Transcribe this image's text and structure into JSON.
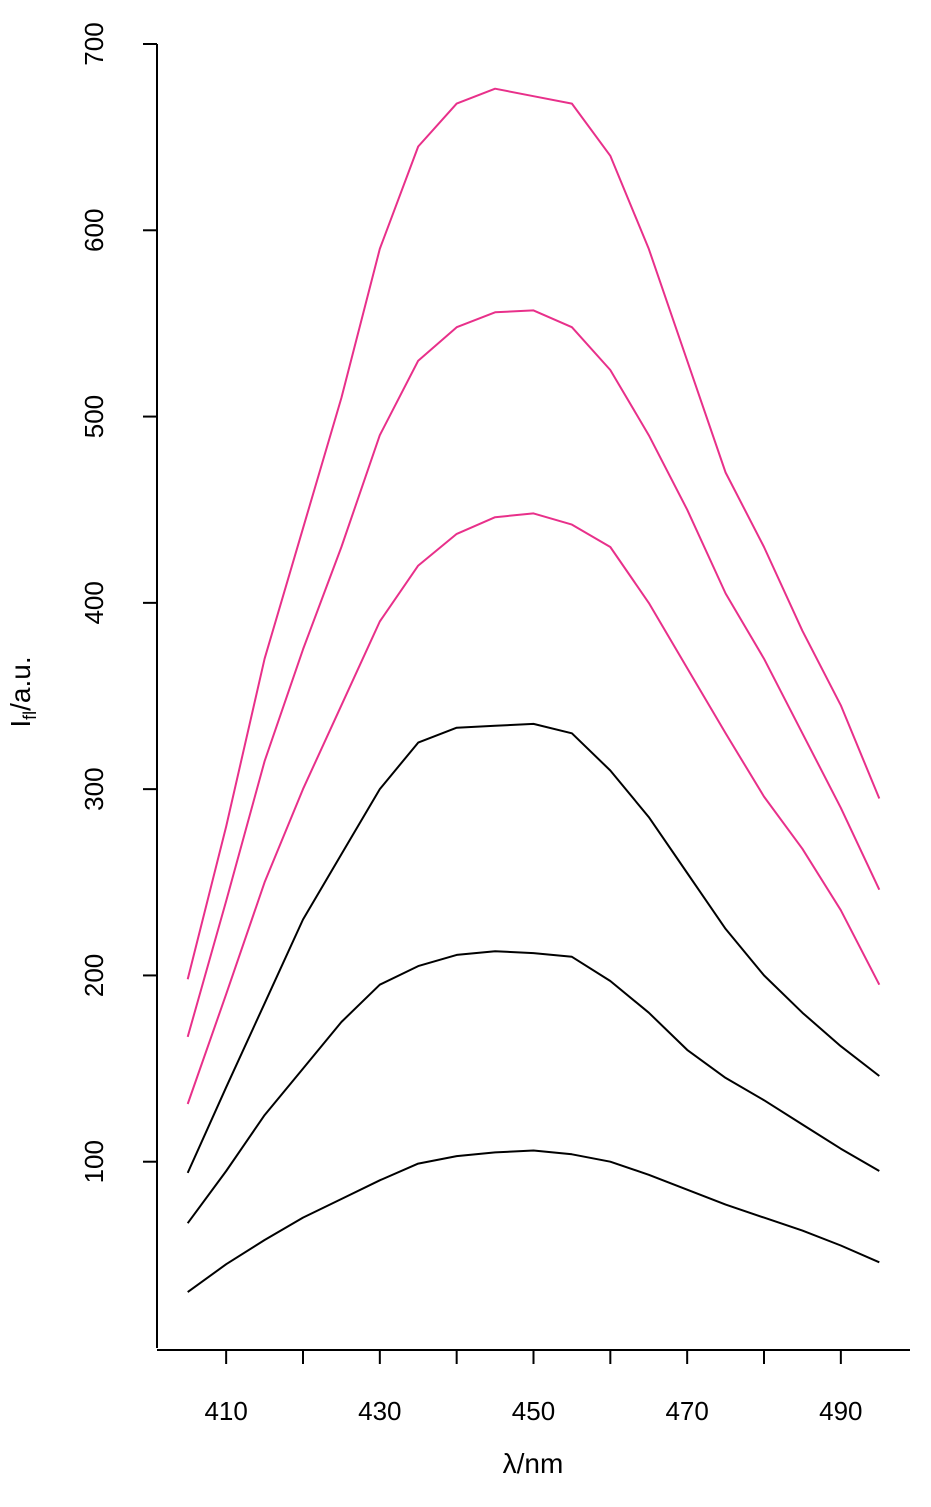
{
  "chart_data": {
    "type": "line",
    "title": "",
    "xlabel_symbol": "λ",
    "xlabel_unit": "/nm",
    "ylabel_main": "I",
    "ylabel_sub": "fl",
    "ylabel_unit": "/a.u.",
    "xlim": [
      401,
      499
    ],
    "ylim": [
      0,
      700
    ],
    "x_ticks": [
      410,
      420,
      430,
      440,
      450,
      460,
      470,
      480,
      490
    ],
    "x_tick_labels": [
      "410",
      "",
      "430",
      "",
      "450",
      "",
      "470",
      "",
      "490"
    ],
    "y_ticks": [
      100,
      200,
      300,
      400,
      500,
      600,
      700
    ],
    "y_tick_labels": [
      "100",
      "200",
      "300",
      "400",
      "500",
      "600",
      "700"
    ],
    "grid": false,
    "x": [
      405,
      410,
      415,
      420,
      425,
      430,
      435,
      440,
      445,
      450,
      455,
      460,
      465,
      470,
      475,
      480,
      485,
      490,
      495
    ],
    "series": [
      {
        "color": "#E8308A",
        "values": [
          198,
          280,
          370,
          440,
          510,
          590,
          645,
          668,
          676,
          672,
          668,
          640,
          590,
          530,
          470,
          430,
          385,
          345,
          295
        ]
      },
      {
        "color": "#E8308A",
        "values": [
          167,
          240,
          315,
          375,
          430,
          490,
          530,
          548,
          556,
          557,
          548,
          525,
          490,
          450,
          405,
          370,
          330,
          290,
          246
        ]
      },
      {
        "color": "#E8308A",
        "values": [
          131,
          190,
          250,
          300,
          345,
          390,
          420,
          437,
          446,
          448,
          442,
          430,
          400,
          365,
          330,
          296,
          268,
          235,
          195
        ]
      },
      {
        "color": "#000000",
        "values": [
          94,
          140,
          185,
          230,
          265,
          300,
          325,
          333,
          334,
          335,
          330,
          310,
          285,
          255,
          225,
          200,
          180,
          162,
          146
        ]
      },
      {
        "color": "#000000",
        "values": [
          67,
          95,
          125,
          150,
          175,
          195,
          205,
          211,
          213,
          212,
          210,
          197,
          180,
          160,
          145,
          133,
          120,
          107,
          95
        ]
      },
      {
        "color": "#000000",
        "values": [
          30,
          45,
          58,
          70,
          80,
          90,
          99,
          103,
          105,
          106,
          104,
          100,
          93,
          85,
          77,
          70,
          63,
          55,
          46
        ]
      }
    ]
  }
}
